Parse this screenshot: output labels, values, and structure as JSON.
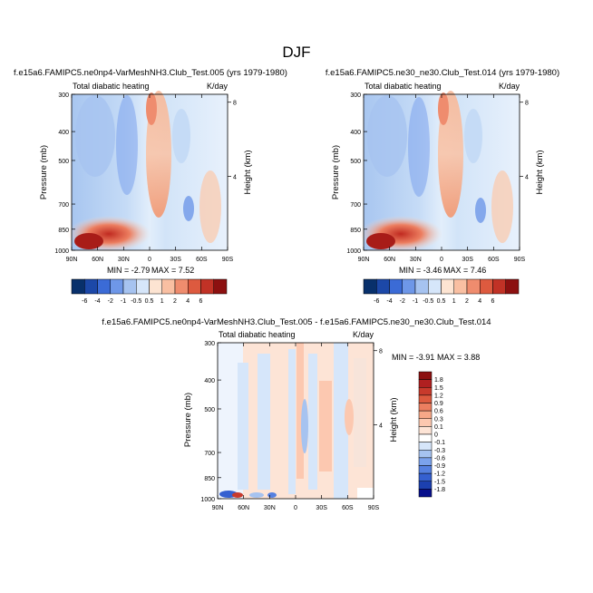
{
  "page": {
    "title": "DJF"
  },
  "chart_data": [
    {
      "type": "heatmap",
      "subtitle": "f.e15a6.FAMIPC5.ne0np4-VarMeshNH3.Club_Test.005 (yrs 1979-1980)",
      "left_label": "Total diabatic heating",
      "right_label": "K/day",
      "ylabel": "Pressure (mb)",
      "ylabel_right": "Height (km)",
      "xlabel": "",
      "x_ticks": [
        "90N",
        "60N",
        "30N",
        "0",
        "30S",
        "60S",
        "90S"
      ],
      "x_tick_values": [
        90,
        60,
        30,
        0,
        -30,
        -60,
        -90
      ],
      "y_ticks": [
        "300",
        "400",
        "500",
        "700",
        "850",
        "1000"
      ],
      "y_tick_values": [
        300,
        400,
        500,
        700,
        850,
        1000
      ],
      "y_ticks_right": [
        "8",
        "4"
      ],
      "y_tick_values_right": [
        8,
        4
      ],
      "ylim": [
        1000,
        300
      ],
      "min_text": "MIN =  -2.79",
      "max_text": "MAX =   7.52",
      "colorbar_labels": [
        "-6",
        "-4",
        "-2",
        "-1",
        "-0.5",
        "0.5",
        "1",
        "2",
        "4",
        "6"
      ],
      "colorbar_colors": [
        "#08306b",
        "#1c48a8",
        "#3b6bd6",
        "#6e97e8",
        "#a6c3f0",
        "#d6e6fa",
        "#fde4d2",
        "#f9bfa2",
        "#ef8c6e",
        "#dd5a3f",
        "#c13226",
        "#8c1010"
      ]
    },
    {
      "type": "heatmap",
      "subtitle": "f.e15a6.FAMIPC5.ne30_ne30.Club_Test.014 (yrs 1979-1980)",
      "left_label": "Total diabatic heating",
      "right_label": "K/day",
      "ylabel": "Pressure (mb)",
      "ylabel_right": "Height (km)",
      "xlabel": "",
      "x_ticks": [
        "90N",
        "60N",
        "30N",
        "0",
        "30S",
        "60S",
        "90S"
      ],
      "x_tick_values": [
        90,
        60,
        30,
        0,
        -30,
        -60,
        -90
      ],
      "y_ticks": [
        "300",
        "400",
        "500",
        "700",
        "850",
        "1000"
      ],
      "y_tick_values": [
        300,
        400,
        500,
        700,
        850,
        1000
      ],
      "y_ticks_right": [
        "8",
        "4"
      ],
      "y_tick_values_right": [
        8,
        4
      ],
      "ylim": [
        1000,
        300
      ],
      "min_text": "MIN =  -3.46",
      "max_text": "MAX =   7.46",
      "colorbar_labels": [
        "-6",
        "-4",
        "-2",
        "-1",
        "-0.5",
        "0.5",
        "1",
        "2",
        "4",
        "6"
      ],
      "colorbar_colors": [
        "#08306b",
        "#1c48a8",
        "#3b6bd6",
        "#6e97e8",
        "#a6c3f0",
        "#d6e6fa",
        "#fde4d2",
        "#f9bfa2",
        "#ef8c6e",
        "#dd5a3f",
        "#c13226",
        "#8c1010"
      ]
    },
    {
      "type": "heatmap",
      "subtitle": "f.e15a6.FAMIPC5.ne0np4-VarMeshNH3.Club_Test.005 - f.e15a6.FAMIPC5.ne30_ne30.Club_Test.014",
      "left_label": "Total diabatic heating",
      "right_label": "K/day",
      "ylabel": "Pressure (mb)",
      "ylabel_right": "Height (km)",
      "xlabel": "",
      "x_ticks": [
        "90N",
        "60N",
        "30N",
        "0",
        "30S",
        "60S",
        "90S"
      ],
      "x_tick_values": [
        90,
        60,
        30,
        0,
        -30,
        -60,
        -90
      ],
      "y_ticks": [
        "300",
        "400",
        "500",
        "700",
        "850",
        "1000"
      ],
      "y_tick_values": [
        300,
        400,
        500,
        700,
        850,
        1000
      ],
      "y_ticks_right": [
        "8",
        "4"
      ],
      "y_tick_values_right": [
        8,
        4
      ],
      "ylim": [
        1000,
        300
      ],
      "min_text": "MIN =  -3.91",
      "max_text": "MAX =   3.88",
      "colorbar_labels": [
        "1.8",
        "1.5",
        "1.2",
        "0.9",
        "0.6",
        "0.3",
        "0.1",
        "0",
        "-0.1",
        "-0.3",
        "-0.6",
        "-0.9",
        "-1.2",
        "-1.5",
        "-1.8"
      ],
      "colorbar_colors": [
        "#8c1010",
        "#b02020",
        "#c83a2c",
        "#dd5a3f",
        "#ec7e60",
        "#f7a888",
        "#fcc8b0",
        "#fde4d6",
        "#ffffff",
        "#d6e6fa",
        "#a6c3f0",
        "#7ba2ec",
        "#5580e0",
        "#3560d0",
        "#1c40b0",
        "#08108c"
      ]
    }
  ]
}
